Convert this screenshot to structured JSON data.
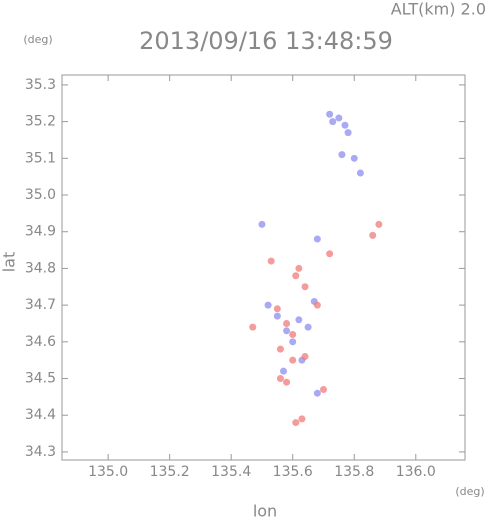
{
  "chart_data": {
    "type": "scatter",
    "title": "2013/09/16 13:48:59",
    "subtitle": "ALT(km) 2.0",
    "x_label": "lon",
    "y_label": "lat",
    "x_unit": "(deg)",
    "y_unit": "(deg)",
    "xlim": [
      134.85,
      136.16
    ],
    "ylim": [
      34.278,
      35.327
    ],
    "xticks": [
      {
        "value": 135,
        "label": "135.0"
      },
      135.2,
      135.4,
      135.6,
      135.8,
      {
        "value": 136,
        "label": "136.0"
      }
    ],
    "yticks": [
      34.3,
      34.4,
      34.5,
      34.6,
      34.7,
      34.8,
      34.9,
      {
        "value": 35,
        "label": "35.0"
      },
      35.1,
      35.2,
      35.3
    ],
    "series": [
      {
        "color": "#8c8cf0",
        "x": [
          135.73,
          135.75,
          135.77,
          135.72,
          135.78,
          135.8,
          135.76,
          135.82,
          135.68,
          135.67,
          135.62,
          135.58,
          135.55,
          135.65,
          135.6,
          135.63,
          135.68,
          135.5,
          135.52,
          135.57
        ],
        "values": [
          35.2,
          35.21,
          35.19,
          35.22,
          35.17,
          35.1,
          35.11,
          35.06,
          34.88,
          34.71,
          34.66,
          34.63,
          34.67,
          34.64,
          34.6,
          34.55,
          34.46,
          34.92,
          34.7,
          34.52
        ]
      },
      {
        "color": "#f07a7a",
        "x": [
          135.53,
          135.62,
          135.61,
          135.64,
          135.55,
          135.58,
          135.6,
          135.56,
          135.6,
          135.64,
          135.58,
          135.56,
          135.7,
          135.63,
          135.61,
          135.47,
          135.68,
          135.72,
          135.86,
          135.88
        ],
        "values": [
          34.82,
          34.8,
          34.78,
          34.75,
          34.69,
          34.65,
          34.62,
          34.58,
          34.55,
          34.56,
          34.49,
          34.5,
          34.47,
          34.39,
          34.38,
          34.64,
          34.7,
          34.84,
          34.89,
          34.92
        ]
      }
    ]
  }
}
